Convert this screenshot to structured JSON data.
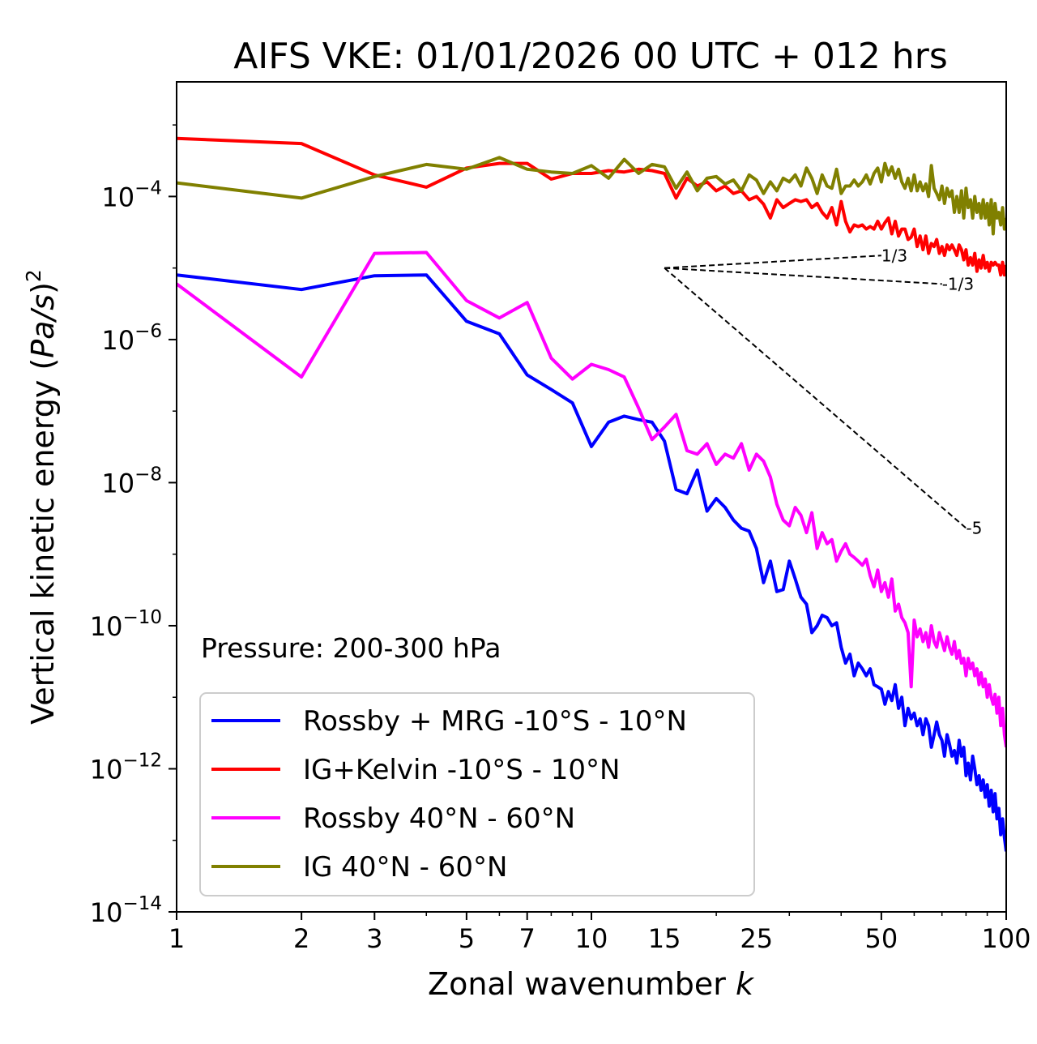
{
  "chart_data": {
    "type": "line",
    "title": "AIFS VKE: 01/01/2026 00 UTC + 012 hrs",
    "xlabel": "Zonal wavenumber",
    "xlabel_var": "k",
    "ylabel_prefix": "Vertical kinetic energy (",
    "ylabel_var": "Pa/s",
    "ylabel_suffix": ")",
    "ylabel_exp": "2",
    "xscale": "log",
    "yscale": "log",
    "xlim": [
      1,
      100
    ],
    "ylim": [
      1e-14,
      0.004
    ],
    "xticks": [
      1,
      2,
      3,
      5,
      7,
      10,
      15,
      25,
      50,
      100
    ],
    "xtick_labels": [
      "1",
      "2",
      "3",
      "5",
      "7",
      "10",
      "15",
      "25",
      "50",
      "100"
    ],
    "yticks": [
      {
        "value": 1e-14,
        "base": "10",
        "exp": "−14"
      },
      {
        "value": 1e-12,
        "base": "10",
        "exp": "−12"
      },
      {
        "value": 1e-10,
        "base": "10",
        "exp": "−10"
      },
      {
        "value": 1e-08,
        "base": "10",
        "exp": "−8"
      },
      {
        "value": 1e-06,
        "base": "10",
        "exp": "−6"
      },
      {
        "value": 0.0001,
        "base": "10",
        "exp": "−4"
      }
    ],
    "annotation": "Pressure: 200-300 hPa",
    "legend_location": "lower-left",
    "series": [
      {
        "name": "Rossby + MRG -10°S - 10°N",
        "color": "#0000ff",
        "x": [
          1,
          2,
          3,
          4,
          5,
          6,
          7,
          8,
          9,
          10,
          11,
          12,
          13,
          14,
          15,
          16,
          17,
          18,
          19,
          20,
          21,
          22,
          23,
          24,
          25,
          26,
          27,
          28,
          29,
          30,
          31,
          32,
          33,
          34,
          35,
          36,
          37,
          38,
          39,
          40,
          41,
          42,
          43,
          44,
          45,
          46,
          47,
          48,
          49,
          50,
          51,
          52,
          53,
          54,
          55,
          56,
          57,
          58,
          59,
          60,
          61,
          62,
          63,
          64,
          65,
          66,
          67,
          68,
          69,
          70,
          71,
          72,
          73,
          74,
          75,
          76,
          77,
          78,
          79,
          80,
          81,
          82,
          83,
          84,
          85,
          86,
          87,
          88,
          89,
          90,
          91,
          92,
          93,
          94,
          95,
          96,
          97,
          98,
          99,
          100
        ],
        "y": [
          8e-06,
          5e-06,
          7.8e-06,
          8e-06,
          1.8e-06,
          1.2e-06,
          3.2e-07,
          2e-07,
          1.3e-07,
          3.2e-08,
          7e-08,
          8.5e-08,
          7.6e-08,
          7e-08,
          3.8e-08,
          8e-09,
          7e-09,
          1.5e-08,
          4e-09,
          6e-09,
          4.5e-09,
          3e-09,
          2.3e-09,
          2.1e-09,
          1.2e-09,
          4e-10,
          8e-10,
          3e-10,
          3.2e-10,
          8e-10,
          4.5e-10,
          2.5e-10,
          2e-10,
          8e-11,
          1e-10,
          1.4e-10,
          1.3e-10,
          1e-10,
          1.1e-10,
          5e-11,
          3e-11,
          4e-11,
          2e-11,
          3e-11,
          2.5e-11,
          2e-11,
          2.5e-11,
          1.5e-11,
          1.4e-11,
          1.3e-11,
          8e-12,
          1.2e-11,
          9e-12,
          1.5e-11,
          7e-12,
          1e-11,
          4e-12,
          7e-12,
          5e-12,
          6e-12,
          4e-12,
          5e-12,
          3e-12,
          5e-12,
          4e-12,
          2e-12,
          3e-12,
          4.5e-12,
          3e-12,
          2.5e-12,
          1.5e-12,
          3e-12,
          2.2e-12,
          1.5e-12,
          1.8e-12,
          1.2e-12,
          2.5e-12,
          1.5e-12,
          2e-12,
          8e-13,
          1.2e-12,
          7e-13,
          1.5e-12,
          1e-12,
          6e-13,
          8e-13,
          5e-13,
          7e-13,
          4e-13,
          6e-13,
          3e-13,
          5e-13,
          2.5e-13,
          4.5e-13,
          2e-13,
          2.8e-13,
          1.2e-13,
          2e-13,
          1.1e-13,
          7e-14
        ]
      },
      {
        "name": "IG+Kelvin -10°S - 10°N",
        "color": "#ff0000",
        "x": [
          1,
          2,
          3,
          4,
          5,
          6,
          7,
          8,
          9,
          10,
          11,
          12,
          13,
          14,
          15,
          16,
          17,
          18,
          19,
          20,
          21,
          22,
          23,
          24,
          25,
          26,
          27,
          28,
          29,
          30,
          31,
          32,
          33,
          34,
          35,
          36,
          37,
          38,
          39,
          40,
          41,
          42,
          43,
          44,
          45,
          46,
          47,
          48,
          49,
          50,
          51,
          52,
          53,
          54,
          55,
          56,
          57,
          58,
          59,
          60,
          61,
          62,
          63,
          64,
          65,
          66,
          67,
          68,
          69,
          70,
          71,
          72,
          73,
          74,
          75,
          76,
          77,
          78,
          79,
          80,
          81,
          82,
          83,
          84,
          85,
          86,
          87,
          88,
          89,
          90,
          91,
          92,
          93,
          94,
          95,
          96,
          97,
          98,
          99,
          100
        ],
        "y": [
          0.00065,
          0.00055,
          0.0002,
          0.000135,
          0.00025,
          0.00029,
          0.00029,
          0.000175,
          0.00021,
          0.00021,
          0.00023,
          0.00022,
          0.00024,
          0.00023,
          0.00021,
          9.5e-05,
          0.00018,
          0.00014,
          0.00016,
          0.00012,
          0.00014,
          0.00011,
          0.00012,
          9e-05,
          0.0001,
          7.8e-05,
          5e-05,
          9e-05,
          7e-05,
          8e-05,
          9e-05,
          8.5e-05,
          9e-05,
          7e-05,
          8e-05,
          6e-05,
          5e-05,
          7e-05,
          4e-05,
          8.5e-05,
          4.5e-05,
          3.2e-05,
          4e-05,
          3.8e-05,
          4e-05,
          3.5e-05,
          3.8e-05,
          3.5e-05,
          4.5e-05,
          3.5e-05,
          4.3e-05,
          5e-05,
          3e-05,
          4.5e-05,
          2.8e-05,
          3.5e-05,
          3.5e-05,
          2.5e-05,
          2.7e-05,
          3.5e-05,
          2e-05,
          2.8e-05,
          1.8e-05,
          2.8e-05,
          1.6e-05,
          2.2e-05,
          2e-05,
          2.5e-05,
          1.6e-05,
          2e-05,
          1.5e-05,
          2.1e-05,
          1.8e-05,
          2.1e-05,
          1.8e-05,
          1.5e-05,
          2.1e-05,
          1.8e-05,
          1.3e-05,
          1.8e-05,
          1.1e-05,
          1.4e-05,
          1.1e-05,
          1.6e-05,
          9e-06,
          1.3e-05,
          1e-05,
          1.5e-05,
          1e-05,
          1.2e-05,
          9e-06,
          1.2e-05,
          1.1e-05,
          1.2e-05,
          1.1e-05,
          1.1e-05,
          8e-06,
          1.2e-05,
          8e-06,
          1.1e-05
        ]
      },
      {
        "name": "Rossby 40°N - 60°N",
        "color": "#ff00ff",
        "x": [
          1,
          2,
          3,
          4,
          5,
          6,
          7,
          8,
          9,
          10,
          11,
          12,
          13,
          14,
          15,
          16,
          17,
          18,
          19,
          20,
          21,
          22,
          23,
          24,
          25,
          26,
          27,
          28,
          29,
          30,
          31,
          32,
          33,
          34,
          35,
          36,
          37,
          38,
          39,
          40,
          41,
          42,
          43,
          44,
          45,
          46,
          47,
          48,
          49,
          50,
          51,
          52,
          53,
          54,
          55,
          56,
          57,
          58,
          59,
          60,
          61,
          62,
          63,
          64,
          65,
          66,
          67,
          68,
          69,
          70,
          71,
          72,
          73,
          74,
          75,
          76,
          77,
          78,
          79,
          80,
          81,
          82,
          83,
          84,
          85,
          86,
          87,
          88,
          89,
          90,
          91,
          92,
          93,
          94,
          95,
          96,
          97,
          98,
          99,
          100
        ],
        "y": [
          6e-06,
          3e-07,
          1.6e-05,
          1.65e-05,
          3.5e-06,
          2e-06,
          3.3e-06,
          5.5e-07,
          2.8e-07,
          4.5e-07,
          3.8e-07,
          3e-07,
          1.1e-07,
          4e-08,
          6e-08,
          9e-08,
          2.8e-08,
          2.5e-08,
          3.5e-08,
          1.8e-08,
          2.5e-08,
          2.2e-08,
          3.5e-08,
          1.5e-08,
          2.5e-08,
          2e-08,
          1.2e-08,
          5e-09,
          3e-09,
          2.5e-09,
          4.5e-09,
          3.5e-09,
          2e-09,
          3.8e-09,
          1.2e-09,
          2e-09,
          1.4e-09,
          1.6e-09,
          8e-10,
          1.1e-09,
          1.4e-09,
          1e-09,
          9e-10,
          8e-10,
          7e-10,
          8.5e-10,
          5e-10,
          3.5e-10,
          6e-10,
          3e-10,
          4e-10,
          2.5e-10,
          4.5e-10,
          1.6e-10,
          2e-10,
          1.3e-10,
          1.1e-10,
          8e-11,
          1.4e-11,
          1.2e-10,
          7e-11,
          9e-11,
          6e-11,
          8e-11,
          5e-11,
          1e-10,
          6e-11,
          5e-11,
          8e-11,
          6e-11,
          4.5e-11,
          7e-11,
          5e-11,
          4e-11,
          6e-11,
          3.5e-11,
          4.5e-11,
          3e-11,
          3.5e-11,
          2e-11,
          3.5e-11,
          2.5e-11,
          3e-11,
          2e-11,
          2.5e-11,
          1.5e-11,
          2.2e-11,
          1.4e-11,
          1.8e-11,
          1e-11,
          1.5e-11,
          1e-11,
          8e-12,
          1.1e-11,
          6e-12,
          1e-11,
          4e-12,
          7e-12,
          3e-12,
          2e-12
        ]
      },
      {
        "name": "IG 40°N - 60°N",
        "color": "#808000",
        "x": [
          1,
          2,
          3,
          4,
          5,
          6,
          7,
          8,
          9,
          10,
          11,
          12,
          13,
          14,
          15,
          16,
          17,
          18,
          19,
          20,
          21,
          22,
          23,
          24,
          25,
          26,
          27,
          28,
          29,
          30,
          31,
          32,
          33,
          34,
          35,
          36,
          37,
          38,
          39,
          40,
          41,
          42,
          43,
          44,
          45,
          46,
          47,
          48,
          49,
          50,
          51,
          52,
          53,
          54,
          55,
          56,
          57,
          58,
          59,
          60,
          61,
          62,
          63,
          64,
          65,
          66,
          67,
          68,
          69,
          70,
          71,
          72,
          73,
          74,
          75,
          76,
          77,
          78,
          79,
          80,
          81,
          82,
          83,
          84,
          85,
          86,
          87,
          88,
          89,
          90,
          91,
          92,
          93,
          94,
          95,
          96,
          97,
          98,
          99,
          100
        ],
        "y": [
          0.000155,
          9.5e-05,
          0.00019,
          0.00028,
          0.00024,
          0.00035,
          0.00024,
          0.00022,
          0.00021,
          0.00027,
          0.00018,
          0.00033,
          0.00021,
          0.00028,
          0.00026,
          0.00013,
          0.00022,
          0.00012,
          0.00018,
          0.00019,
          0.00015,
          0.00017,
          0.00012,
          0.0002,
          0.00017,
          0.00011,
          0.00016,
          0.00012,
          0.00018,
          0.00016,
          0.0002,
          0.00014,
          0.00025,
          0.00018,
          0.00011,
          0.0002,
          0.00014,
          0.00013,
          0.00024,
          0.00011,
          0.00014,
          0.00014,
          0.00017,
          0.00014,
          0.00016,
          0.0002,
          0.00015,
          0.00021,
          0.00025,
          0.00016,
          0.00029,
          0.0002,
          0.00026,
          0.00018,
          0.00024,
          0.00016,
          0.00013,
          0.00018,
          0.00012,
          0.0002,
          0.00012,
          0.00016,
          0.00012,
          0.00015,
          0.0001,
          0.00027,
          0.00013,
          0.00011,
          9e-05,
          0.00014,
          8e-05,
          0.00013,
          0.0001,
          0.00012,
          6e-05,
          0.0001,
          6e-05,
          0.00012,
          5e-05,
          0.00013,
          7e-05,
          9e-05,
          5e-05,
          0.0001,
          6e-05,
          8e-05,
          5e-05,
          9e-05,
          5e-05,
          8e-05,
          4e-05,
          9e-05,
          3e-05,
          8e-05,
          5e-05,
          6e-05,
          4e-05,
          7e-05,
          3.5e-05,
          5e-05
        ]
      }
    ],
    "reference_lines": [
      {
        "label": "1/3",
        "slope": 0.3333,
        "x0": 15,
        "y0": 1e-05,
        "x1": 50
      },
      {
        "label": "-1/3",
        "slope": -0.3333,
        "x0": 15,
        "y0": 1e-05,
        "x1": 70
      },
      {
        "label": "-5",
        "slope": -5,
        "x0": 15,
        "y0": 1e-05,
        "x1": 80
      }
    ]
  }
}
